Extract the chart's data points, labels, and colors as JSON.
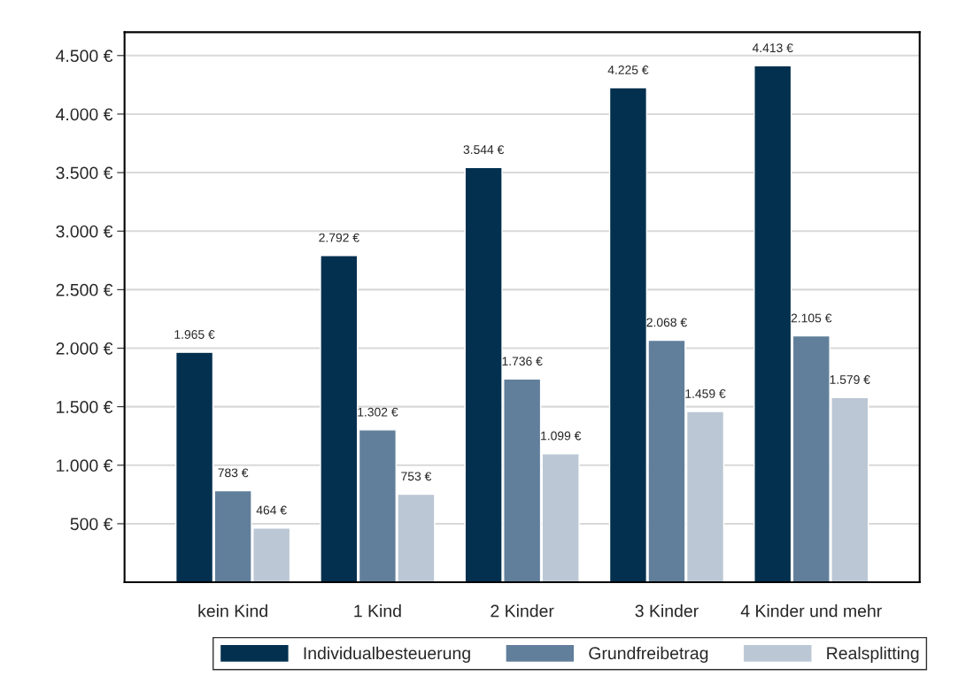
{
  "chart_data": {
    "type": "bar",
    "categories": [
      "kein Kind",
      "1 Kind",
      "2 Kinder",
      "3 Kinder",
      "4 Kinder und mehr"
    ],
    "series": [
      {
        "name": "Individualbesteuerung",
        "color": "#03304f",
        "values": [
          1965,
          2792,
          3544,
          4225,
          4413
        ],
        "value_labels": [
          "1.965 €",
          "2.792 €",
          "3.544 €",
          "4.225 €",
          "4.413 €"
        ]
      },
      {
        "name": "Grundfreibetrag",
        "color": "#617f9b",
        "values": [
          783,
          1302,
          1736,
          2068,
          2105
        ],
        "value_labels": [
          "783 €",
          "1.302 €",
          "1.736 €",
          "2.068 €",
          "2.105 €"
        ]
      },
      {
        "name": "Realsplitting",
        "color": "#bbc7d4",
        "values": [
          464,
          753,
          1099,
          1459,
          1579
        ],
        "value_labels": [
          "464 €",
          "753 €",
          "1.099 €",
          "1.459 €",
          "1.579 €"
        ]
      }
    ],
    "ylim": [
      0,
      4700
    ],
    "yticks": [
      {
        "value": 500,
        "label": "500 €"
      },
      {
        "value": 1000,
        "label": "1.000 €"
      },
      {
        "value": 1500,
        "label": "1.500 €"
      },
      {
        "value": 2000,
        "label": "2.000 €"
      },
      {
        "value": 2500,
        "label": "2.500 €"
      },
      {
        "value": 3000,
        "label": "3.000 €"
      },
      {
        "value": 3500,
        "label": "3.500 €"
      },
      {
        "value": 4000,
        "label": "4.000 €"
      },
      {
        "value": 4500,
        "label": "4.500 €"
      }
    ],
    "grid": "y",
    "legend": "bottom"
  }
}
